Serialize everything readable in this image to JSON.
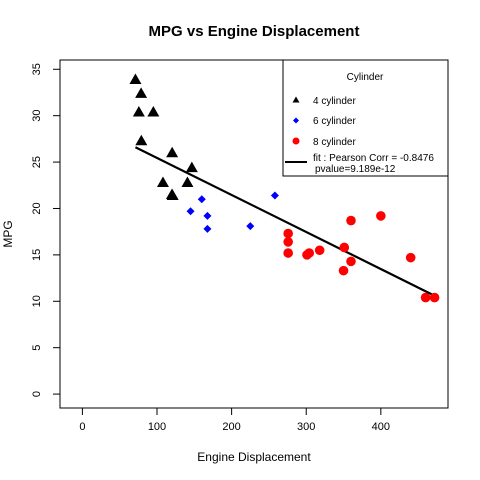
{
  "chart_data": {
    "type": "scatter",
    "title": "MPG vs Engine Displacement",
    "xlabel": "Engine Displacement",
    "ylabel": "MPG",
    "xlim": [
      -30,
      490
    ],
    "ylim": [
      -1.5,
      36.0
    ],
    "x_ticks": [
      0,
      100,
      200,
      300,
      400
    ],
    "y_ticks": [
      0,
      5,
      10,
      15,
      20,
      25,
      30,
      35
    ],
    "grid": false,
    "legend": {
      "title": "Cylinder",
      "placement": "top-right",
      "entries": [
        {
          "label": "4 cylinder",
          "marker": "triangle",
          "color": "#000000"
        },
        {
          "label": "6 cylinder",
          "marker": "diamond",
          "color": "#0000ff"
        },
        {
          "label": "8 cylinder",
          "marker": "circle",
          "color": "#ff0000"
        },
        {
          "label": "fit : Pearson Corr = -0.8476",
          "sublabel": "pvalue=9.189e-12",
          "marker": "line",
          "color": "#000000"
        }
      ]
    },
    "series": [
      {
        "name": "4 cylinder",
        "marker": "triangle",
        "color": "#000000",
        "points": [
          [
            71.1,
            33.9
          ],
          [
            75.7,
            30.4
          ],
          [
            78.7,
            32.4
          ],
          [
            79.0,
            27.3
          ],
          [
            95.1,
            30.4
          ],
          [
            108.0,
            22.8
          ],
          [
            120.1,
            21.5
          ],
          [
            120.3,
            26.0
          ],
          [
            140.8,
            22.8
          ],
          [
            146.7,
            24.4
          ],
          [
            121.0,
            21.4
          ]
        ]
      },
      {
        "name": "6 cylinder",
        "marker": "diamond",
        "color": "#0000ff",
        "points": [
          [
            145.0,
            19.7
          ],
          [
            160.0,
            21.0
          ],
          [
            167.6,
            19.2
          ],
          [
            167.6,
            17.8
          ],
          [
            225.0,
            18.1
          ],
          [
            258.0,
            21.4
          ]
        ]
      },
      {
        "name": "8 cylinder",
        "marker": "circle",
        "color": "#ff0000",
        "points": [
          [
            275.8,
            16.4
          ],
          [
            275.8,
            17.3
          ],
          [
            275.8,
            15.2
          ],
          [
            301.0,
            15.0
          ],
          [
            304.0,
            15.2
          ],
          [
            318.0,
            15.5
          ],
          [
            350.0,
            13.3
          ],
          [
            351.0,
            15.8
          ],
          [
            360.0,
            18.7
          ],
          [
            360.0,
            14.3
          ],
          [
            400.0,
            19.2
          ],
          [
            440.0,
            14.7
          ],
          [
            460.0,
            10.4
          ],
          [
            472.0,
            10.4
          ]
        ]
      }
    ],
    "fit_line": {
      "name": "fit",
      "from": [
        71.1,
        26.6
      ],
      "to": [
        472.0,
        10.6
      ],
      "pearson_corr": -0.8476,
      "pvalue": "9.189e-12"
    }
  }
}
